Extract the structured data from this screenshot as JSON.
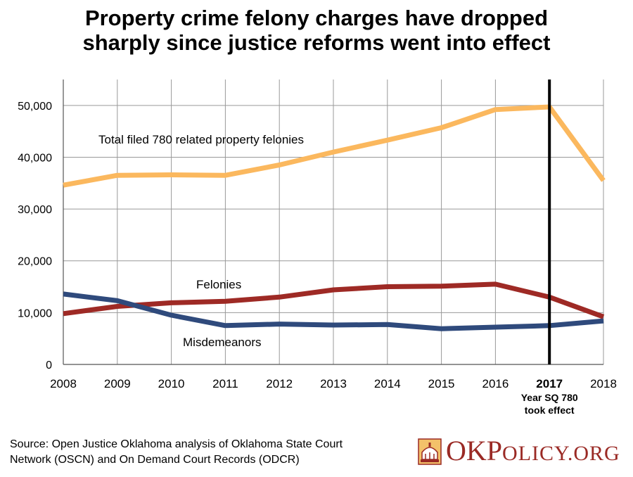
{
  "chart_data": {
    "type": "line",
    "title_lines": [
      "Property crime felony charges have dropped",
      "sharply since justice reforms went into effect"
    ],
    "x": [
      2008,
      2009,
      2010,
      2011,
      2012,
      2013,
      2014,
      2015,
      2016,
      2017,
      2018
    ],
    "x_tick_labels": [
      "2008",
      "2009",
      "2010",
      "2011",
      "2012",
      "2013",
      "2014",
      "2015",
      "2016",
      "2017",
      "2018"
    ],
    "highlight_x_label": "2017",
    "y_ticks": [
      0,
      10000,
      20000,
      30000,
      40000,
      50000
    ],
    "y_tick_labels": [
      "0",
      "10,000",
      "20,000",
      "30,000",
      "40,000",
      "50,000"
    ],
    "ylim": [
      0,
      55000
    ],
    "grid": true,
    "series": [
      {
        "name": "Total filed 780 related property felonies",
        "color": "#fbb85e",
        "values": [
          34600,
          36500,
          36600,
          36500,
          38500,
          41000,
          43300,
          45700,
          49200,
          49700,
          35500
        ]
      },
      {
        "name": "Felonies",
        "color": "#9e2a25",
        "values": [
          9800,
          11200,
          11900,
          12200,
          13000,
          14400,
          15000,
          15100,
          15500,
          13000,
          9200
        ]
      },
      {
        "name": "Misdemeanors",
        "color": "#2f4a7c",
        "values": [
          13600,
          12300,
          9500,
          7500,
          7800,
          7600,
          7700,
          6900,
          7200,
          7500,
          8400
        ]
      }
    ],
    "reference_line": {
      "x": 2017,
      "color": "#000000",
      "label_lines": [
        "Year SQ 780",
        "took effect"
      ]
    }
  },
  "source": {
    "line1": "Source: Open Justice Oklahoma analysis of Oklahoma State Court",
    "line2": "Network (OSCN) and On Demand Court Records (ODCR)"
  },
  "logo": {
    "ok": "OK",
    "p": "P",
    "olicy": "OLICY",
    "dot_org": ".ORG"
  }
}
